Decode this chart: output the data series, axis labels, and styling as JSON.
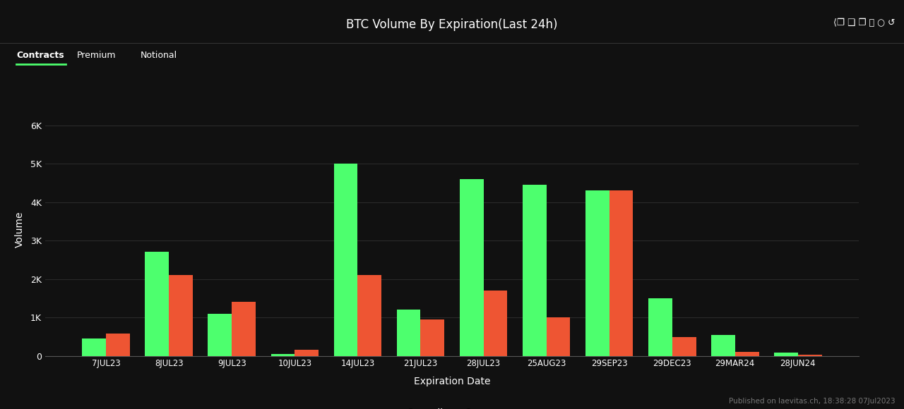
{
  "title": "BTC Volume By Expiration(Last 24h)",
  "xlabel": "Expiration Date",
  "ylabel": "Volume",
  "background_color": "#111111",
  "plot_bg_color": "#111111",
  "grid_color": "#2a2a2a",
  "text_color": "#ffffff",
  "calls_color": "#4dff6e",
  "puts_color": "#ee5533",
  "categories": [
    "7JUL23",
    "8JUL23",
    "9JUL23",
    "10JUL23",
    "14JUL23",
    "21JUL23",
    "28JUL23",
    "25AUG23",
    "29SEP23",
    "29DEC23",
    "29MAR24",
    "28JUN24"
  ],
  "calls": [
    450,
    2700,
    1100,
    50,
    5000,
    1200,
    4600,
    4450,
    4300,
    1500,
    550,
    80
  ],
  "puts": [
    580,
    2100,
    1400,
    150,
    2100,
    950,
    1700,
    1000,
    4300,
    480,
    100,
    30
  ],
  "yticks": [
    0,
    1000,
    2000,
    3000,
    4000,
    5000,
    6000
  ],
  "ytick_labels": [
    "0",
    "1K",
    "2K",
    "3K",
    "4K",
    "5K",
    "6K"
  ],
  "ylim": [
    0,
    6600
  ],
  "footer_text": "Published on laevitas.ch, 18:38:28 07Jul2023",
  "tab_labels": [
    "Contracts",
    "Premium",
    "Notional"
  ],
  "active_tab": "Contracts",
  "bar_width": 0.38,
  "header_separator_color": "#333333",
  "active_underline_color": "#4dff6e"
}
